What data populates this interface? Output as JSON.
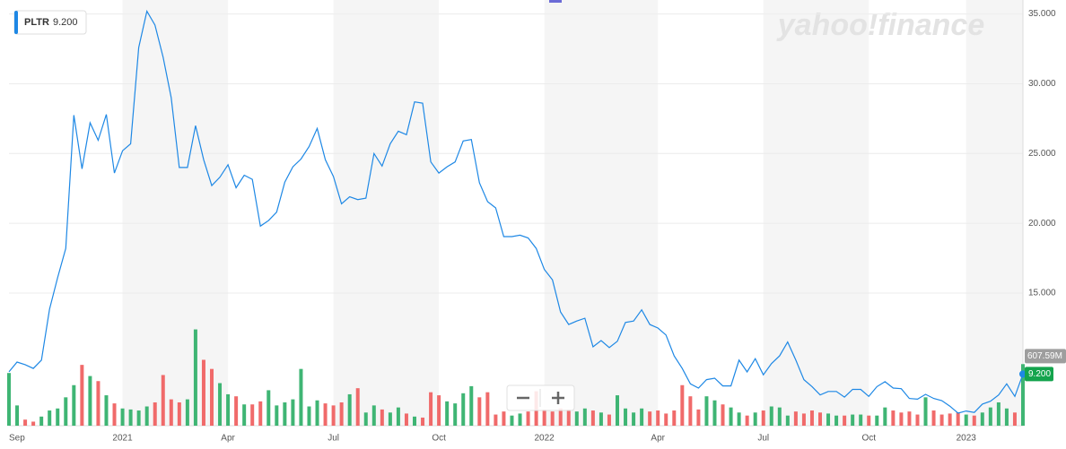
{
  "chart_data": {
    "type": "line",
    "watermark": "yahoo!finance",
    "categories": [
      "Sep",
      null,
      null,
      null,
      null,
      null,
      null,
      null,
      null,
      null,
      null,
      null,
      null,
      null,
      "2021",
      null,
      null,
      null,
      null,
      null,
      null,
      null,
      null,
      null,
      null,
      null,
      null,
      "Apr",
      null,
      null,
      null,
      null,
      null,
      null,
      null,
      null,
      null,
      null,
      null,
      null,
      "Jul",
      null,
      null,
      null,
      null,
      null,
      null,
      null,
      null,
      null,
      null,
      null,
      null,
      "Oct",
      null,
      null,
      null,
      null,
      null,
      null,
      null,
      null,
      null,
      null,
      null,
      null,
      "2022",
      null,
      null,
      null,
      null,
      null,
      null,
      null,
      null,
      null,
      null,
      null,
      null,
      null,
      "Apr",
      null,
      null,
      null,
      null,
      null,
      null,
      null,
      null,
      null,
      null,
      null,
      null,
      "Jul",
      null,
      null,
      null,
      null,
      null,
      null,
      null,
      null,
      null,
      null,
      null,
      null,
      "Oct",
      null,
      null,
      null,
      null,
      null,
      null,
      null,
      null,
      null,
      null,
      null,
      "2023",
      null,
      null,
      null,
      null,
      null,
      null,
      null
    ],
    "series": [
      {
        "name": "PLTR",
        "color": "#1e88e5",
        "last_label": "9.200",
        "values": [
          9.36,
          10.06,
          9.87,
          9.6,
          10.2,
          13.85,
          16.1,
          18.2,
          27.75,
          23.9,
          27.2,
          25.95,
          27.8,
          23.6,
          25.2,
          25.7,
          32.6,
          35.2,
          34.2,
          31.9,
          29.0,
          24.0,
          24.0,
          27.0,
          24.55,
          22.7,
          23.3,
          24.2,
          22.55,
          23.45,
          23.15,
          19.8,
          20.2,
          20.8,
          22.95,
          24.05,
          24.6,
          25.5,
          26.8,
          24.55,
          23.35,
          21.4,
          21.9,
          21.7,
          21.8,
          25.0,
          24.1,
          25.7,
          26.6,
          26.35,
          28.7,
          28.6,
          24.4,
          23.6,
          24.05,
          24.4,
          25.9,
          26.0,
          22.9,
          21.55,
          21.1,
          19.05,
          19.05,
          19.15,
          18.95,
          18.2,
          16.7,
          15.95,
          13.65,
          12.75,
          13.0,
          13.2,
          11.15,
          11.6,
          11.1,
          11.55,
          12.9,
          13.0,
          13.8,
          12.75,
          12.5,
          12.0,
          10.5,
          9.6,
          8.5,
          8.2,
          8.8,
          8.9,
          8.35,
          8.35,
          10.2,
          9.35,
          10.3,
          9.15,
          9.95,
          10.5,
          11.5,
          10.2,
          8.8,
          8.3,
          7.7,
          7.95,
          7.95,
          7.55,
          8.1,
          8.1,
          7.6,
          8.3,
          8.65,
          8.2,
          8.15,
          7.45,
          7.4,
          7.75,
          7.45,
          7.3,
          6.9,
          6.4,
          6.55,
          6.45,
          7.05,
          7.25,
          7.7,
          8.5,
          7.6,
          9.2
        ]
      }
    ],
    "volume": {
      "up_color": "#3fb574",
      "down_color": "#f06a6a",
      "last_label": "607.59M",
      "lim": [
        0,
        4200
      ],
      "values": [
        520,
        200,
        60,
        40,
        90,
        150,
        170,
        280,
        400,
        600,
        490,
        440,
        300,
        220,
        170,
        160,
        150,
        190,
        230,
        500,
        260,
        230,
        260,
        950,
        650,
        560,
        420,
        310,
        290,
        210,
        210,
        240,
        350,
        200,
        230,
        260,
        560,
        190,
        250,
        220,
        200,
        230,
        310,
        370,
        130,
        200,
        160,
        130,
        180,
        120,
        90,
        80,
        330,
        300,
        240,
        220,
        320,
        390,
        280,
        330,
        110,
        140,
        100,
        120,
        140,
        340,
        160,
        140,
        170,
        160,
        140,
        170,
        150,
        130,
        110,
        300,
        170,
        130,
        170,
        140,
        150,
        120,
        150,
        400,
        290,
        160,
        290,
        250,
        210,
        180,
        130,
        100,
        130,
        150,
        190,
        180,
        100,
        140,
        120,
        150,
        130,
        120,
        100,
        100,
        110,
        110,
        100,
        100,
        180,
        150,
        130,
        140,
        110,
        280,
        150,
        110,
        120,
        130,
        110,
        100,
        130,
        180,
        230,
        170,
        130,
        607.59
      ]
    },
    "ylim": [
      5.5,
      36
    ],
    "yticks": [
      {
        "value": 15,
        "label": "15.000"
      },
      {
        "value": 20,
        "label": "20.000"
      },
      {
        "value": 25,
        "label": "25.000"
      },
      {
        "value": 30,
        "label": "30.000"
      },
      {
        "value": 35,
        "label": "35.000"
      }
    ],
    "grid": true
  }
}
